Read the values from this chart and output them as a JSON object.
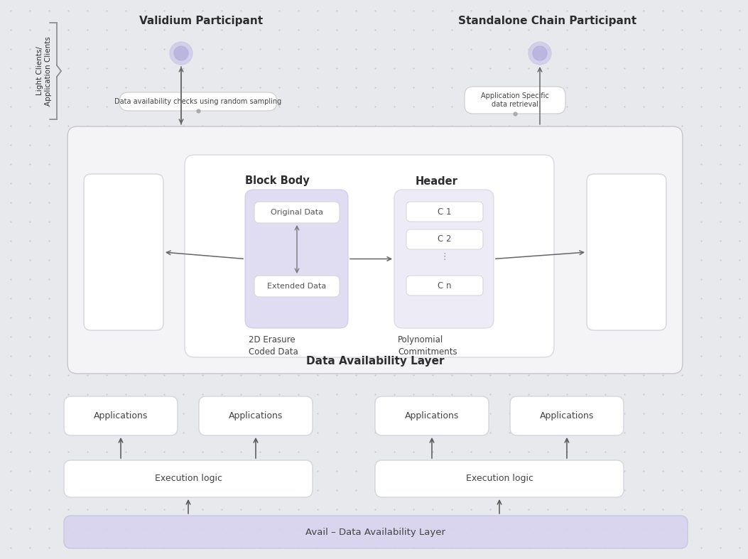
{
  "bg_color": "#e8e9ed",
  "dot_color": "#c5c6cf",
  "title_validium": "Validium Participant",
  "title_standalone": "Standalone Chain Participant",
  "label_light_clients": "Light Clients/\nApplication Clients",
  "label_da_layer": "Data Availability Layer",
  "label_avail_layer": "Avail – Data Availability Layer",
  "label_block_body": "Block Body",
  "label_header": "Header",
  "label_original_data": "Original Data",
  "label_extended_data": "Extended Data",
  "label_2d_erasure": "2D Erasure\nCoded Data",
  "label_polynomial": "Polynomial\nCommitments",
  "label_data_avail_check": "Data availability checks using random sampling",
  "label_app_specific": "Application Specific\ndata retrieval",
  "label_applications": "Applications",
  "label_execution_logic": "Execution logic",
  "text_color": "#2d2d2d",
  "text_light": "#555555",
  "arrow_color": "#666666"
}
